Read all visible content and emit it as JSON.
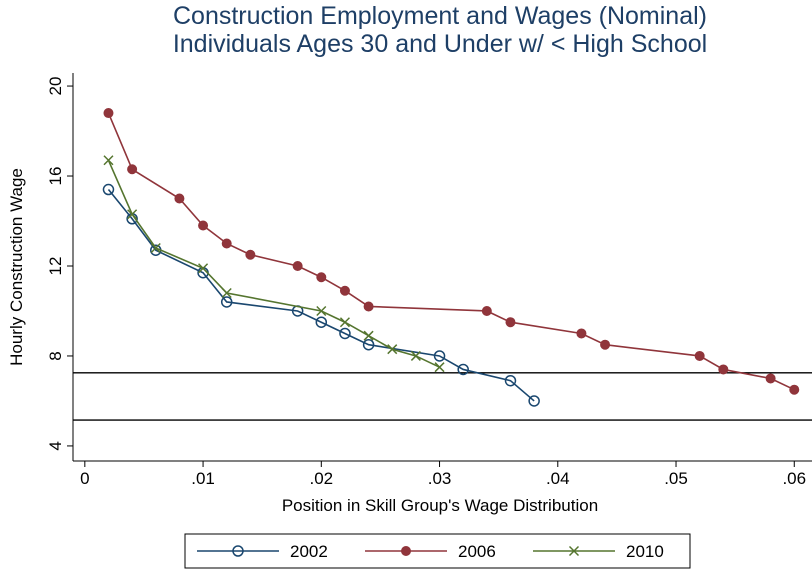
{
  "chart_data": {
    "type": "line",
    "title": [
      "Construction Employment and Wages (Nominal)",
      "Individuals Ages 30 and Under w/ < High School"
    ],
    "x_label": "Position in Skill Group's Wage Distribution",
    "y_label": "Hourly Construction Wage",
    "xlim": [
      -0.001,
      0.0615
    ],
    "ylim": [
      3.33,
      20.58
    ],
    "xticks": [
      0,
      {
        "value": 0.01,
        "label": ".01"
      },
      {
        "value": 0.02,
        "label": ".02"
      },
      {
        "value": 0.03,
        "label": ".03"
      },
      {
        "value": 0.04,
        "label": ".04"
      },
      {
        "value": 0.05,
        "label": ".05"
      },
      {
        "value": 0.06,
        "label": ".06"
      }
    ],
    "yticks": [
      4,
      8,
      12,
      16,
      20
    ],
    "hlines": [
      7.25,
      5.15
    ],
    "grid": false,
    "series": [
      {
        "name": "2002",
        "color": "#1a476f",
        "marker": "circle",
        "x": [
          0.002,
          0.004,
          0.006,
          0.01,
          0.012,
          0.018,
          0.02,
          0.022,
          0.024,
          0.03,
          0.032,
          0.036,
          0.038
        ],
        "values": [
          15.4,
          14.1,
          12.7,
          11.7,
          10.4,
          10.0,
          9.5,
          9.0,
          8.5,
          8.0,
          7.4,
          6.9,
          6.0
        ]
      },
      {
        "name": "2006",
        "color": "#90353b",
        "marker": "dot",
        "x": [
          0.002,
          0.004,
          0.008,
          0.01,
          0.012,
          0.014,
          0.018,
          0.02,
          0.022,
          0.024,
          0.034,
          0.036,
          0.042,
          0.044,
          0.052,
          0.054,
          0.058,
          0.06
        ],
        "values": [
          18.8,
          16.3,
          15.0,
          13.8,
          13.0,
          12.5,
          12.0,
          11.5,
          10.9,
          10.2,
          10.0,
          9.5,
          9.0,
          8.5,
          8.0,
          7.4,
          7.0,
          6.5
        ]
      },
      {
        "name": "2010",
        "color": "#55752f",
        "marker": "x",
        "x": [
          0.002,
          0.004,
          0.006,
          0.01,
          0.012,
          0.02,
          0.022,
          0.024,
          0.026,
          0.028,
          0.03
        ],
        "values": [
          16.7,
          14.3,
          12.8,
          11.9,
          10.8,
          10.0,
          9.5,
          8.9,
          8.3,
          8.0,
          7.5
        ]
      }
    ]
  }
}
